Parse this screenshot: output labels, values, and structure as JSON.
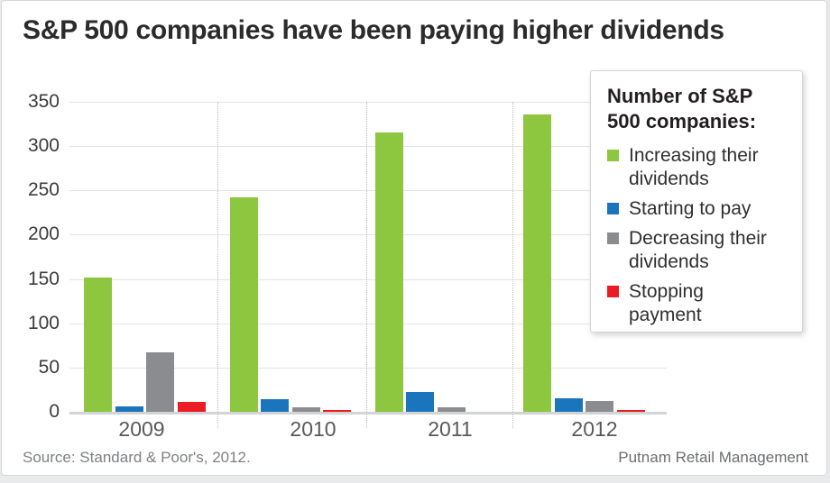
{
  "card": {
    "title": "S&P 500 companies have been paying higher dividends",
    "source": "Source: Standard & Poor's, 2012.",
    "branding": "Putnam Retail Management"
  },
  "legend": {
    "title_lines": [
      "Number of S&P",
      "500 companies:"
    ],
    "items": [
      {
        "name": "increasing-dividends",
        "swatch_color": "#8dc63f",
        "lines": [
          "Increasing their",
          "dividends"
        ]
      },
      {
        "name": "starting-to-pay",
        "swatch_color": "#1b75bc",
        "lines": [
          "Starting to pay"
        ]
      },
      {
        "name": "decreasing-dividends",
        "swatch_color": "#8a8c8f",
        "lines": [
          "Decreasing their",
          "dividends"
        ]
      },
      {
        "name": "stopping-payment",
        "swatch_color": "#ec1c24",
        "lines": [
          "Stopping",
          "payment"
        ]
      }
    ]
  },
  "chart_data": {
    "type": "bar",
    "title": "S&P 500 companies have been paying higher dividends",
    "categories": [
      "2009",
      "2010",
      "2011",
      "2012"
    ],
    "series": [
      {
        "name": "Increasing their dividends",
        "color": "#8dc63f",
        "values": [
          152,
          242,
          315,
          336
        ]
      },
      {
        "name": "Starting to pay",
        "color": "#1b75bc",
        "values": [
          6,
          14,
          22,
          15
        ]
      },
      {
        "name": "Decreasing their dividends",
        "color": "#8a8c8f",
        "values": [
          67,
          5,
          5,
          12
        ]
      },
      {
        "name": "Stopping payment",
        "color": "#ec1c24",
        "values": [
          11,
          2,
          0,
          2
        ]
      }
    ],
    "ylabel": "Number of S&P 500 companies",
    "xlabel": "",
    "ylim": [
      0,
      350
    ],
    "ytick_step": 50,
    "grid": true,
    "legend_position": "upper-right-overlay"
  }
}
